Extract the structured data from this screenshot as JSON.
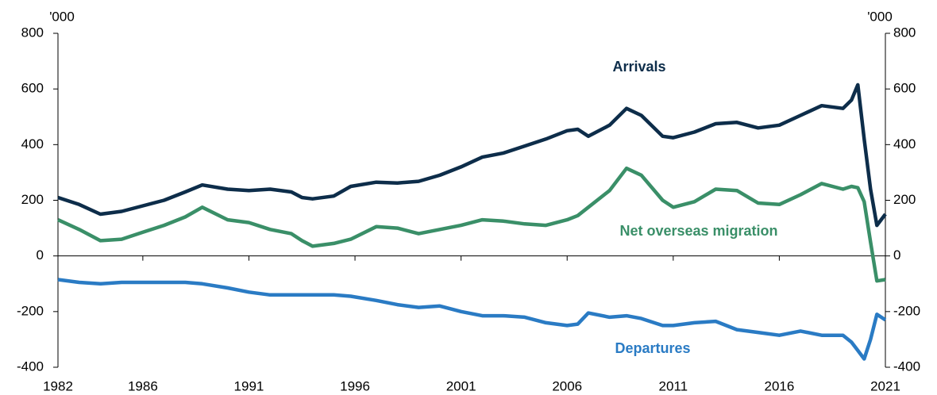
{
  "chart_data": {
    "type": "line",
    "y_unit_left": "'000",
    "y_unit_right": "'000",
    "x": [
      1982,
      1983,
      1984,
      1985,
      1986,
      1987,
      1988,
      1988.8,
      1990,
      1991,
      1992,
      1993,
      1993.5,
      1994,
      1995,
      1995.8,
      1997,
      1998,
      1999,
      2000,
      2001,
      2002,
      2003,
      2004,
      2005,
      2006,
      2006.5,
      2007,
      2008,
      2008.8,
      2009.5,
      2010.5,
      2011,
      2012,
      2013,
      2014,
      2015,
      2016,
      2017,
      2018,
      2019,
      2019.4,
      2019.7,
      2020,
      2020.3,
      2020.6,
      2021
    ],
    "series": [
      {
        "name": "Arrivals",
        "color": "#0d2d4a",
        "values": [
          210,
          185,
          150,
          160,
          180,
          200,
          230,
          255,
          240,
          235,
          240,
          230,
          210,
          205,
          215,
          250,
          265,
          262,
          268,
          290,
          320,
          355,
          370,
          395,
          420,
          450,
          455,
          430,
          470,
          530,
          505,
          430,
          425,
          445,
          475,
          480,
          460,
          470,
          505,
          540,
          530,
          560,
          615,
          420,
          240,
          110,
          150
        ]
      },
      {
        "name": "Net overseas migration",
        "color": "#3a8f68",
        "values": [
          130,
          95,
          55,
          60,
          85,
          110,
          140,
          175,
          130,
          120,
          95,
          80,
          55,
          35,
          45,
          60,
          105,
          100,
          80,
          95,
          110,
          130,
          125,
          115,
          110,
          130,
          145,
          175,
          235,
          315,
          290,
          200,
          175,
          195,
          240,
          235,
          190,
          185,
          220,
          260,
          240,
          250,
          245,
          195,
          50,
          -90,
          -85
        ]
      },
      {
        "name": "Departures",
        "color": "#2a7bc4",
        "values": [
          -85,
          -95,
          -100,
          -95,
          -95,
          -95,
          -95,
          -100,
          -115,
          -130,
          -140,
          -140,
          -140,
          -140,
          -140,
          -145,
          -160,
          -175,
          -185,
          -180,
          -200,
          -215,
          -215,
          -220,
          -240,
          -250,
          -245,
          -205,
          -220,
          -215,
          -225,
          -250,
          -250,
          -240,
          -235,
          -265,
          -275,
          -285,
          -270,
          -285,
          -285,
          -310,
          -340,
          -370,
          -300,
          -210,
          -230
        ]
      }
    ],
    "xlim": [
      1982,
      2021
    ],
    "xticks": [
      1982,
      1986,
      1991,
      1996,
      2001,
      2006,
      2011,
      2016,
      2021
    ],
    "ylim": [
      -400,
      800
    ],
    "yticks": [
      -400,
      -200,
      0,
      200,
      400,
      600,
      800
    ],
    "y2lim": [
      -400,
      800
    ],
    "y2ticks": [
      -400,
      -200,
      0,
      200,
      400,
      600,
      800
    ]
  }
}
